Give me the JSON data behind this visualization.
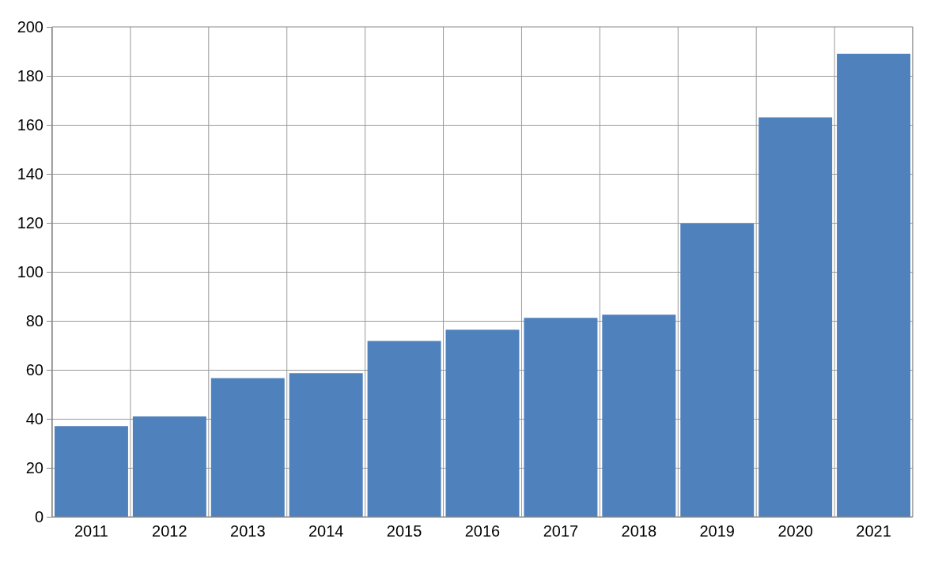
{
  "chart_data": {
    "type": "bar",
    "categories": [
      "2011",
      "2012",
      "2013",
      "2014",
      "2015",
      "2016",
      "2017",
      "2018",
      "2019",
      "2020",
      "2021"
    ],
    "values": [
      37,
      41,
      56.6,
      58.6,
      71.8,
      76.4,
      81.2,
      82.5,
      119.7,
      163.1,
      189
    ],
    "color": "#4f81bd",
    "ylim": [
      0,
      200
    ],
    "yticks": [
      0,
      20,
      40,
      60,
      80,
      100,
      120,
      140,
      160,
      180,
      200
    ],
    "grid": true,
    "legend": false
  }
}
